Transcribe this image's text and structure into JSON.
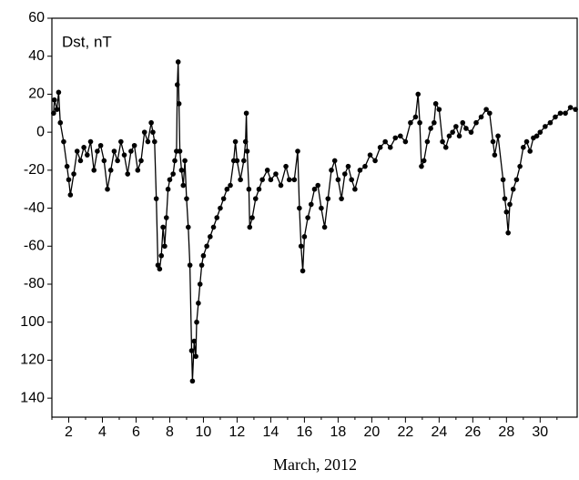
{
  "chart_data": {
    "type": "line",
    "annotation": "Dst, nT",
    "xlabel": "March, 2012",
    "color": "#000000",
    "xlim": [
      1,
      32.2
    ],
    "ylim": [
      -150,
      60
    ],
    "xticks": [
      2,
      4,
      6,
      8,
      10,
      12,
      14,
      16,
      18,
      20,
      22,
      24,
      26,
      28,
      30
    ],
    "xminorticks": [
      1,
      3,
      5,
      7,
      9,
      11,
      13,
      15,
      17,
      19,
      21,
      23,
      25,
      27,
      29,
      31
    ],
    "yticks": [
      60,
      40,
      20,
      0,
      -20,
      -40,
      -60,
      -80,
      {
        "value": -100,
        "label": "100"
      },
      {
        "value": -120,
        "label": "120"
      },
      {
        "value": -140,
        "label": "140"
      }
    ],
    "x": [
      1.1,
      1.15,
      1.3,
      1.4,
      1.5,
      1.7,
      1.9,
      2.0,
      2.1,
      2.3,
      2.5,
      2.7,
      2.9,
      3.1,
      3.3,
      3.5,
      3.7,
      3.9,
      4.1,
      4.3,
      4.5,
      4.7,
      4.9,
      5.1,
      5.3,
      5.5,
      5.7,
      5.9,
      6.1,
      6.3,
      6.5,
      6.7,
      6.9,
      7.0,
      7.1,
      7.2,
      7.3,
      7.4,
      7.5,
      7.6,
      7.7,
      7.8,
      7.9,
      8.0,
      8.2,
      8.3,
      8.4,
      8.45,
      8.5,
      8.55,
      8.6,
      8.7,
      8.8,
      8.9,
      9.0,
      9.1,
      9.2,
      9.3,
      9.35,
      9.45,
      9.55,
      9.6,
      9.7,
      9.8,
      9.9,
      10.0,
      10.2,
      10.4,
      10.6,
      10.8,
      11.0,
      11.2,
      11.4,
      11.6,
      11.8,
      11.9,
      12.0,
      12.2,
      12.4,
      12.5,
      12.55,
      12.6,
      12.7,
      12.75,
      12.9,
      13.1,
      13.3,
      13.5,
      13.8,
      14.0,
      14.3,
      14.6,
      14.9,
      15.1,
      15.4,
      15.6,
      15.7,
      15.8,
      15.9,
      16.0,
      16.2,
      16.4,
      16.6,
      16.8,
      17.0,
      17.2,
      17.4,
      17.6,
      17.8,
      18.0,
      18.2,
      18.4,
      18.6,
      18.8,
      19.0,
      19.3,
      19.6,
      19.9,
      20.2,
      20.5,
      20.8,
      21.1,
      21.4,
      21.7,
      22.0,
      22.3,
      22.6,
      22.75,
      22.85,
      22.95,
      23.1,
      23.3,
      23.5,
      23.7,
      23.8,
      24.0,
      24.2,
      24.4,
      24.6,
      24.8,
      25.0,
      25.2,
      25.4,
      25.6,
      25.9,
      26.2,
      26.5,
      26.8,
      27.0,
      27.2,
      27.3,
      27.5,
      27.8,
      27.9,
      28.0,
      28.1,
      28.2,
      28.4,
      28.6,
      28.8,
      29.0,
      29.2,
      29.4,
      29.6,
      29.8,
      30.0,
      30.3,
      30.6,
      30.9,
      31.2,
      31.5,
      31.8,
      32.1
    ],
    "values": [
      10,
      17,
      12,
      21,
      5,
      -5,
      -18,
      -25,
      -33,
      -22,
      -10,
      -15,
      -8,
      -12,
      -5,
      -20,
      -10,
      -7,
      -15,
      -30,
      -20,
      -10,
      -15,
      -5,
      -12,
      -22,
      -10,
      -7,
      -20,
      -15,
      0,
      -5,
      5,
      0,
      -5,
      -35,
      -70,
      -72,
      -65,
      -50,
      -60,
      -45,
      -30,
      -25,
      -22,
      -15,
      -10,
      25,
      37,
      15,
      -10,
      -20,
      -28,
      -15,
      -35,
      -50,
      -70,
      -115,
      -131,
      -110,
      -118,
      -100,
      -90,
      -80,
      -70,
      -65,
      -60,
      -55,
      -50,
      -45,
      -40,
      -35,
      -30,
      -28,
      -15,
      -5,
      -15,
      -25,
      -15,
      -5,
      10,
      -10,
      -30,
      -50,
      -45,
      -35,
      -30,
      -25,
      -20,
      -25,
      -22,
      -28,
      -18,
      -25,
      -25,
      -10,
      -40,
      -60,
      -73,
      -55,
      -45,
      -38,
      -30,
      -28,
      -40,
      -50,
      -35,
      -20,
      -15,
      -25,
      -35,
      -22,
      -18,
      -25,
      -30,
      -20,
      -18,
      -12,
      -15,
      -8,
      -5,
      -8,
      -3,
      -2,
      -5,
      5,
      8,
      20,
      5,
      -18,
      -15,
      -5,
      2,
      5,
      15,
      12,
      -5,
      -8,
      -2,
      0,
      3,
      -2,
      5,
      2,
      0,
      5,
      8,
      12,
      10,
      -5,
      -12,
      -2,
      -25,
      -35,
      -42,
      -53,
      -38,
      -30,
      -25,
      -18,
      -8,
      -5,
      -10,
      -3,
      -2,
      0,
      3,
      5,
      8,
      10,
      10,
      13,
      12
    ]
  }
}
